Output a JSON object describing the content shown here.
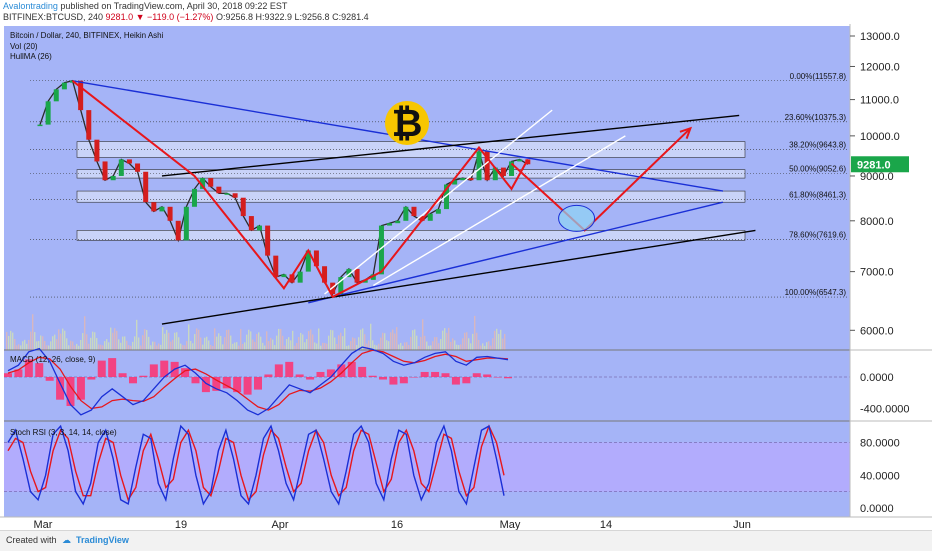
{
  "header": {
    "author": "Avalontrading",
    "published": " published on TradingView.com, April 30, 2018 09:22 EST",
    "symbol": "BITFINEX:BTCUSD, 240",
    "last": "9281.0",
    "change": "−119.0 (−1.27%)",
    "open": "O:9256.8",
    "high": "H:9322.9",
    "low": "L:9256.8",
    "close": "C:9281.4"
  },
  "legend": {
    "title": "Bitcoin / Dollar, 240, BITFINEX, Heikin Ashi",
    "vol": "Vol (20)",
    "hull": "HullMA (26)",
    "macd": "MACD (12, 26, close, 9)",
    "stoch": "Stoch RSI (3, 3, 14, 14, close)"
  },
  "footer": {
    "created": "Created with",
    "brand": "TradingView"
  },
  "colors": {
    "background": "#a5b4f7",
    "price_up": "#1aa64a",
    "price_down": "#d41e1e",
    "annotation_red": "#e8161b",
    "trend_blue": "#1a2fd6",
    "trend_black": "#000000",
    "channel_white": "#ffffff",
    "macd_line": "#1a2fd6",
    "signal_line": "#e8161b",
    "histogram": "#ff2f6e",
    "stoch_band": "#b8a8ff",
    "price_badge": "#1aa64a",
    "bitcoin_gold": "#f7c600"
  },
  "chart_data": [
    {
      "type": "line",
      "panel": "price",
      "scale": "log",
      "ylim": [
        5300,
        13300
      ],
      "y_ticks": [
        {
          "value": 6000,
          "label": "6000.0"
        },
        {
          "value": 7000,
          "label": "7000.0"
        },
        {
          "value": 8000,
          "label": "8000.0"
        },
        {
          "value": 9000,
          "label": "9000.0"
        },
        {
          "value": 10000,
          "label": "10000.0"
        },
        {
          "value": 11000,
          "label": "11000.0"
        },
        {
          "value": 12000,
          "label": "12000.0"
        },
        {
          "value": 13000,
          "label": "13000.0"
        }
      ],
      "x_ticks": [
        "Mar",
        "19",
        "Apr",
        "16",
        "May",
        "14",
        "Jun"
      ],
      "current_price": {
        "value": 9281.0,
        "label": "9281.0"
      },
      "price_series": [
        [
          "2018-03-01",
          10300
        ],
        [
          "2018-03-02",
          10950
        ],
        [
          "2018-03-03",
          11300
        ],
        [
          "2018-03-04",
          11500
        ],
        [
          "2018-03-05",
          11560
        ],
        [
          "2018-03-06",
          10700
        ],
        [
          "2018-03-07",
          9900
        ],
        [
          "2018-03-08",
          9350
        ],
        [
          "2018-03-09",
          8900
        ],
        [
          "2018-03-10",
          9000
        ],
        [
          "2018-03-11",
          9400
        ],
        [
          "2018-03-12",
          9300
        ],
        [
          "2018-03-13",
          9100
        ],
        [
          "2018-03-14",
          8400
        ],
        [
          "2018-03-15",
          8200
        ],
        [
          "2018-03-16",
          8300
        ],
        [
          "2018-03-17",
          8000
        ],
        [
          "2018-03-18",
          7600
        ],
        [
          "2018-03-19",
          8300
        ],
        [
          "2018-03-20",
          8700
        ],
        [
          "2018-03-21",
          8950
        ],
        [
          "2018-03-22",
          8750
        ],
        [
          "2018-03-23",
          8600
        ],
        [
          "2018-03-24",
          8600
        ],
        [
          "2018-03-25",
          8500
        ],
        [
          "2018-03-26",
          8100
        ],
        [
          "2018-03-27",
          7800
        ],
        [
          "2018-03-28",
          7900
        ],
        [
          "2018-03-29",
          7300
        ],
        [
          "2018-03-30",
          6900
        ],
        [
          "2018-03-31",
          6950
        ],
        [
          "2018-04-01",
          6800
        ],
        [
          "2018-04-02",
          7000
        ],
        [
          "2018-04-03",
          7400
        ],
        [
          "2018-04-04",
          7100
        ],
        [
          "2018-04-05",
          6800
        ],
        [
          "2018-04-06",
          6600
        ],
        [
          "2018-04-07",
          6900
        ],
        [
          "2018-04-08",
          7050
        ],
        [
          "2018-04-09",
          6800
        ],
        [
          "2018-04-10",
          6850
        ],
        [
          "2018-04-11",
          6950
        ],
        [
          "2018-04-12",
          7900
        ],
        [
          "2018-04-13",
          7950
        ],
        [
          "2018-04-14",
          8000
        ],
        [
          "2018-04-15",
          8300
        ],
        [
          "2018-04-16",
          8100
        ],
        [
          "2018-04-17",
          8000
        ],
        [
          "2018-04-18",
          8150
        ],
        [
          "2018-04-19",
          8250
        ],
        [
          "2018-04-20",
          8800
        ],
        [
          "2018-04-21",
          8900
        ],
        [
          "2018-04-22",
          8950
        ],
        [
          "2018-04-23",
          8900
        ],
        [
          "2018-04-24",
          9600
        ],
        [
          "2018-04-25",
          8900
        ],
        [
          "2018-04-26",
          9200
        ],
        [
          "2018-04-27",
          9000
        ],
        [
          "2018-04-28",
          9350
        ],
        [
          "2018-04-29",
          9400
        ],
        [
          "2018-04-30",
          9281
        ]
      ],
      "fibonacci_levels": [
        {
          "ratio": "0.00%",
          "value": 11557.8,
          "label": "0.00%(11557.8)"
        },
        {
          "ratio": "23.60%",
          "value": 10375.3,
          "label": "23.60%(10375.3)"
        },
        {
          "ratio": "38.20%",
          "value": 9643.8,
          "label": "38.20%(9643.8)"
        },
        {
          "ratio": "50.00%",
          "value": 9052.6,
          "label": "50.00%(9052.6)"
        },
        {
          "ratio": "61.80%",
          "value": 8461.3,
          "label": "61.80%(8461.3)"
        },
        {
          "ratio": "78.60%",
          "value": 7619.6,
          "label": "78.60%(7619.6)"
        },
        {
          "ratio": "100.00%",
          "value": 6547.3,
          "label": "100.00%(6547.3)"
        }
      ],
      "zones": [
        {
          "from": 9450,
          "to": 9850
        },
        {
          "from": 8950,
          "to": 9150
        },
        {
          "from": 8400,
          "to": 8650
        },
        {
          "from": 7600,
          "to": 7800
        }
      ],
      "trendlines": [
        {
          "color": "trend_blue",
          "points": [
            [
              "2018-03-05",
              11557
            ],
            [
              "2018-05-24",
              8650
            ]
          ]
        },
        {
          "color": "trend_blue",
          "points": [
            [
              "2018-04-03",
              6450
            ],
            [
              "2018-05-24",
              8400
            ]
          ]
        },
        {
          "color": "trend_black",
          "points": [
            [
              "2018-03-16",
              9000
            ],
            [
              "2018-05-26",
              10550
            ]
          ]
        },
        {
          "color": "trend_black",
          "points": [
            [
              "2018-03-16",
              6100
            ],
            [
              "2018-05-28",
              7800
            ]
          ]
        },
        {
          "color": "channel_white",
          "points": [
            [
              "2018-04-05",
              6600
            ],
            [
              "2018-05-03",
              10700
            ]
          ]
        },
        {
          "color": "channel_white",
          "points": [
            [
              "2018-04-11",
              6750
            ],
            [
              "2018-05-12",
              10000
            ]
          ]
        }
      ],
      "zigzag": [
        [
          "2018-03-05",
          11557
        ],
        [
          "2018-03-20",
          9000
        ],
        [
          "2018-03-31",
          6700
        ],
        [
          "2018-04-03",
          7400
        ],
        [
          "2018-04-06",
          6550
        ],
        [
          "2018-04-12",
          7000
        ],
        [
          "2018-04-24",
          9700
        ],
        [
          "2018-04-28",
          8700
        ],
        [
          "2018-04-30",
          9400
        ]
      ],
      "projection": [
        [
          "2018-04-28",
          9300
        ],
        [
          "2018-05-07",
          7800
        ],
        [
          "2018-05-20",
          10200
        ]
      ],
      "target_ellipse": {
        "x": "2018-05-06",
        "y": 8050
      }
    },
    {
      "type": "line",
      "panel": "macd",
      "ylim": [
        -560,
        420
      ],
      "y_ticks": [
        {
          "value": 0,
          "label": "0.0000"
        },
        {
          "value": -400,
          "label": "-400.0000"
        }
      ],
      "macd": [
        80,
        150,
        320,
        360,
        200,
        -80,
        -350,
        -480,
        -420,
        -250,
        -150,
        -250,
        -350,
        -300,
        -150,
        0,
        100,
        150,
        50,
        -80,
        -150,
        -200,
        -300,
        -420,
        -480,
        -400,
        -250,
        -100,
        -150,
        -200,
        -100,
        0,
        150,
        300,
        380,
        350,
        300,
        200,
        150,
        180,
        250,
        300,
        320,
        200,
        150,
        250,
        260,
        240,
        220
      ],
      "signal": [
        50,
        90,
        180,
        250,
        230,
        100,
        -120,
        -300,
        -400,
        -380,
        -300,
        -280,
        -300,
        -310,
        -250,
        -130,
        -20,
        80,
        100,
        40,
        -40,
        -110,
        -180,
        -280,
        -380,
        -420,
        -350,
        -220,
        -170,
        -180,
        -140,
        -60,
        50,
        180,
        300,
        340,
        320,
        260,
        200,
        180,
        210,
        260,
        290,
        260,
        200,
        220,
        240,
        240,
        230
      ]
    },
    {
      "type": "line",
      "panel": "stoch_rsi",
      "ylim": [
        -6,
        105
      ],
      "y_ticks": [
        {
          "value": 0,
          "label": "0.0000"
        },
        {
          "value": 40,
          "label": "40.0000"
        },
        {
          "value": 80,
          "label": "80.0000"
        }
      ],
      "band": [
        20,
        80
      ],
      "k": [
        80,
        95,
        60,
        20,
        10,
        40,
        90,
        100,
        70,
        20,
        5,
        30,
        80,
        95,
        60,
        10,
        5,
        50,
        90,
        85,
        30,
        10,
        60,
        100,
        90,
        40,
        5,
        20,
        70,
        95,
        60,
        15,
        5,
        40,
        85,
        100,
        70,
        30,
        10,
        50,
        90,
        95,
        60,
        20,
        5,
        45,
        90,
        100,
        80,
        30,
        10,
        60,
        95,
        90,
        40,
        10,
        30,
        80,
        100,
        70,
        20,
        5,
        50,
        95,
        100,
        60,
        15
      ],
      "d": [
        70,
        85,
        80,
        45,
        20,
        25,
        70,
        95,
        85,
        45,
        15,
        15,
        55,
        85,
        80,
        40,
        10,
        25,
        70,
        90,
        60,
        25,
        35,
        80,
        95,
        70,
        25,
        15,
        45,
        85,
        80,
        40,
        10,
        20,
        65,
        95,
        85,
        50,
        20,
        30,
        70,
        95,
        80,
        40,
        15,
        25,
        70,
        95,
        90,
        55,
        20,
        35,
        80,
        95,
        70,
        30,
        20,
        55,
        90,
        85,
        45,
        15,
        25,
        75,
        100,
        80,
        40
      ]
    }
  ]
}
